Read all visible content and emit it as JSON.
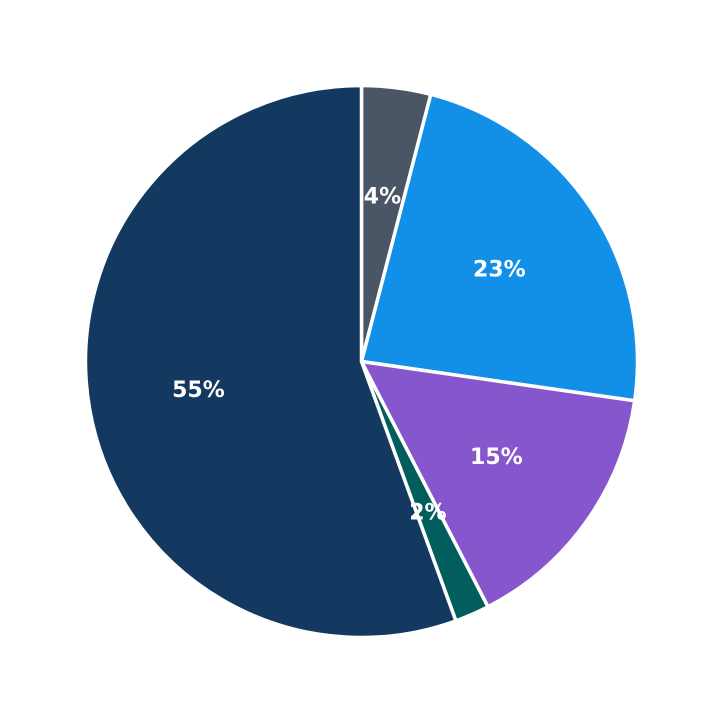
{
  "chart_data": {
    "type": "pie",
    "title": "",
    "start_angle_deg": 90,
    "direction": "clockwise",
    "slices": [
      {
        "value": 4,
        "label": "4%",
        "color": "#4a5565"
      },
      {
        "value": 23,
        "label": "23%",
        "color": "#1290e8"
      },
      {
        "value": 15,
        "label": "15%",
        "color": "#8657cc"
      },
      {
        "value": 2,
        "label": "2%",
        "color": "#025d5d"
      },
      {
        "value": 55,
        "label": "55%",
        "color": "#133961"
      }
    ],
    "legend": "none"
  }
}
